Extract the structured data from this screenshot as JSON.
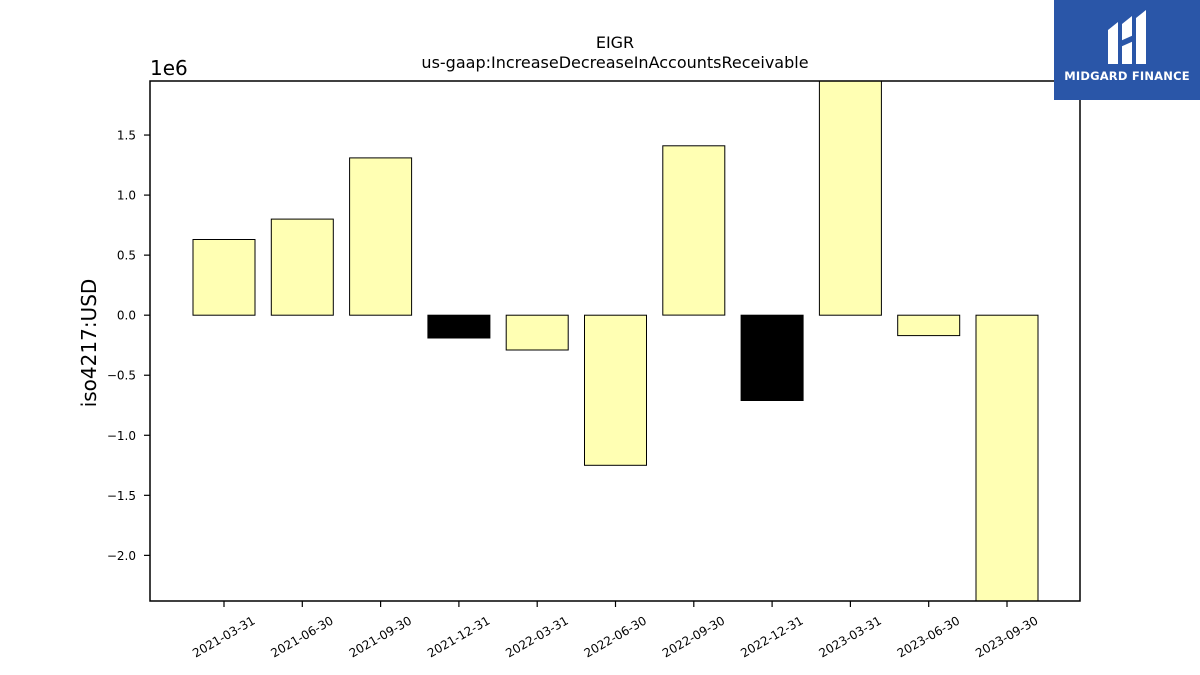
{
  "chart_data": {
    "type": "bar",
    "title": "EIGR",
    "subtitle": "us-gaap:IncreaseDecreaseInAccountsReceivable",
    "xlabel": "",
    "ylabel": "iso4217:USD",
    "offset_label": "1e6",
    "scale": 1000000,
    "ylim": [
      -2.38,
      1.95
    ],
    "yticks": [
      -2.0,
      -1.5,
      -1.0,
      -0.5,
      0.0,
      0.5,
      1.0,
      1.5
    ],
    "ytick_labels": [
      "−2.0",
      "−1.5",
      "−1.0",
      "−0.5",
      "0.0",
      "0.5",
      "1.0",
      "1.5"
    ],
    "categories": [
      "2021-03-31",
      "2021-06-30",
      "2021-09-30",
      "2021-12-31",
      "2022-03-31",
      "2022-06-30",
      "2022-09-30",
      "2022-12-31",
      "2023-03-31",
      "2023-06-30",
      "2023-09-30"
    ],
    "values": [
      0.63,
      0.8,
      1.31,
      -0.19,
      -0.29,
      -1.25,
      1.41,
      -0.71,
      1.95,
      -0.17,
      -2.38
    ],
    "bar_colors": [
      "#ffffb3",
      "#ffffb3",
      "#ffffb3",
      "#000000",
      "#ffffb3",
      "#ffffb3",
      "#ffffb3",
      "#000000",
      "#ffffb3",
      "#ffffb3",
      "#ffffb3"
    ],
    "grid": false,
    "legend": "none"
  },
  "logo": {
    "text": "MIDGARD FINANCE",
    "background": "#2a56a8",
    "icon": "midgard-logo-icon"
  }
}
